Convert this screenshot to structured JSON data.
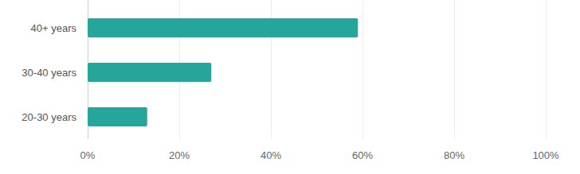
{
  "chart_data": {
    "type": "bar",
    "orientation": "horizontal",
    "categories": [
      "40+ years",
      "30-40 years",
      "20-30 years"
    ],
    "values": [
      59,
      27,
      13
    ],
    "color": "#26a69a",
    "xlim": [
      0,
      100
    ],
    "xticks": [
      {
        "value": 0,
        "label": "0%"
      },
      {
        "value": 20,
        "label": "20%"
      },
      {
        "value": 40,
        "label": "40%"
      },
      {
        "value": 60,
        "label": "60%"
      },
      {
        "value": 80,
        "label": "80%"
      },
      {
        "value": 100,
        "label": "100%"
      }
    ],
    "grid": true
  }
}
